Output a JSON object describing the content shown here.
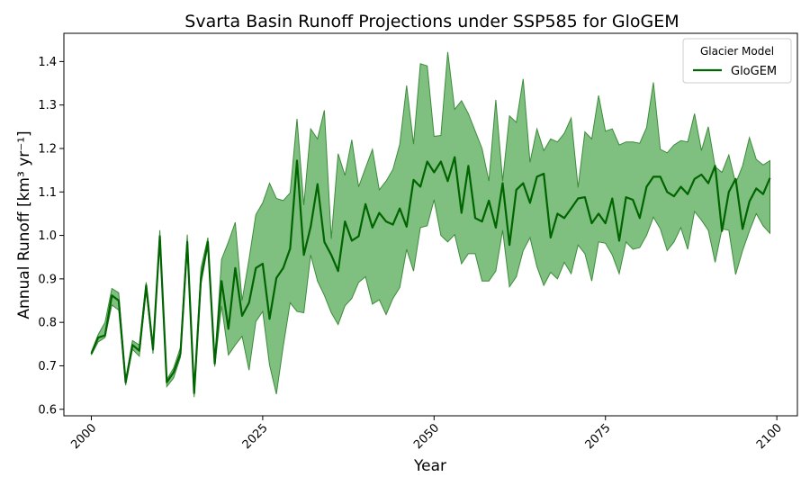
{
  "chart_data": {
    "type": "line",
    "title": "Svarta Basin Runoff Projections under SSP585 for GloGEM",
    "xlabel": "Year",
    "ylabel": "Annual Runoff [km³ yr⁻¹]",
    "xlim": [
      1996,
      2103
    ],
    "ylim": [
      0.585,
      1.465
    ],
    "xticks": [
      2000,
      2025,
      2050,
      2075,
      2100
    ],
    "yticks": [
      0.6,
      0.7,
      0.8,
      0.9,
      1.0,
      1.1,
      1.2,
      1.3,
      1.4
    ],
    "xtick_labels": [
      "2000",
      "2025",
      "2050",
      "2075",
      "2100"
    ],
    "ytick_labels": [
      "0.6",
      "0.7",
      "0.8",
      "0.9",
      "1.0",
      "1.1",
      "1.2",
      "1.3",
      "1.4"
    ],
    "grid": false,
    "legend": {
      "title": "Glacier Model",
      "position": "top-right"
    },
    "x": [
      2000,
      2001,
      2002,
      2003,
      2004,
      2005,
      2006,
      2007,
      2008,
      2009,
      2010,
      2011,
      2012,
      2013,
      2014,
      2015,
      2016,
      2017,
      2018,
      2019,
      2020,
      2021,
      2022,
      2023,
      2024,
      2025,
      2026,
      2027,
      2028,
      2029,
      2030,
      2031,
      2032,
      2033,
      2034,
      2035,
      2036,
      2037,
      2038,
      2039,
      2040,
      2041,
      2042,
      2043,
      2044,
      2045,
      2046,
      2047,
      2048,
      2049,
      2050,
      2051,
      2052,
      2053,
      2054,
      2055,
      2056,
      2057,
      2058,
      2059,
      2060,
      2061,
      2062,
      2063,
      2064,
      2065,
      2066,
      2067,
      2068,
      2069,
      2070,
      2071,
      2072,
      2073,
      2074,
      2075,
      2076,
      2077,
      2078,
      2079,
      2080,
      2081,
      2082,
      2083,
      2084,
      2085,
      2086,
      2087,
      2088,
      2089,
      2090,
      2091,
      2092,
      2093,
      2094,
      2095,
      2096,
      2097,
      2098,
      2099
    ],
    "series": [
      {
        "name": "GloGEM",
        "color": "#006400",
        "fill_color": "#7fbf7f",
        "values": [
          0.728,
          0.765,
          0.77,
          0.862,
          0.85,
          0.662,
          0.748,
          0.735,
          0.885,
          0.738,
          0.998,
          0.662,
          0.685,
          0.728,
          0.985,
          0.637,
          0.902,
          0.985,
          0.705,
          0.895,
          0.785,
          0.925,
          0.815,
          0.845,
          0.925,
          0.935,
          0.808,
          0.902,
          0.925,
          0.97,
          1.172,
          0.955,
          1.02,
          1.118,
          0.985,
          0.955,
          0.918,
          1.032,
          0.988,
          0.998,
          1.072,
          1.018,
          1.052,
          1.032,
          1.025,
          1.062,
          1.02,
          1.128,
          1.112,
          1.17,
          1.145,
          1.17,
          1.125,
          1.18,
          1.052,
          1.16,
          1.04,
          1.032,
          1.08,
          1.018,
          1.12,
          0.978,
          1.105,
          1.12,
          1.075,
          1.135,
          1.142,
          0.995,
          1.05,
          1.04,
          1.062,
          1.085,
          1.088,
          1.028,
          1.05,
          1.028,
          1.085,
          0.988,
          1.088,
          1.082,
          1.04,
          1.112,
          1.135,
          1.135,
          1.1,
          1.09,
          1.112,
          1.095,
          1.13,
          1.14,
          1.12,
          1.16,
          1.01,
          1.1,
          1.13,
          1.015,
          1.078,
          1.108,
          1.095,
          1.132
        ]
      }
    ],
    "band": {
      "upper": [
        0.732,
        0.772,
        0.8,
        0.878,
        0.868,
        0.668,
        0.758,
        0.748,
        0.892,
        0.745,
        1.012,
        0.668,
        0.695,
        0.742,
        1.002,
        0.642,
        0.925,
        0.995,
        0.712,
        0.945,
        0.985,
        1.03,
        0.85,
        0.945,
        1.048,
        1.075,
        1.12,
        1.085,
        1.08,
        1.098,
        1.268,
        1.07,
        1.245,
        1.222,
        1.288,
        0.992,
        1.188,
        1.138,
        1.22,
        1.112,
        1.155,
        1.198,
        1.105,
        1.125,
        1.152,
        1.21,
        1.345,
        1.21,
        1.395,
        1.39,
        1.228,
        1.23,
        1.422,
        1.29,
        1.31,
        1.28,
        1.24,
        1.2,
        1.125,
        1.312,
        1.125,
        1.275,
        1.26,
        1.36,
        1.168,
        1.245,
        1.195,
        1.222,
        1.215,
        1.235,
        1.27,
        1.11,
        1.238,
        1.222,
        1.322,
        1.24,
        1.245,
        1.208,
        1.215,
        1.215,
        1.212,
        1.248,
        1.352,
        1.198,
        1.19,
        1.208,
        1.218,
        1.215,
        1.28,
        1.195,
        1.25,
        1.158,
        1.145,
        1.185,
        1.12,
        1.16,
        1.225,
        1.175,
        1.162,
        1.172
      ],
      "lower": [
        0.725,
        0.755,
        0.765,
        0.84,
        0.828,
        0.655,
        0.738,
        0.722,
        0.872,
        0.728,
        0.988,
        0.652,
        0.672,
        0.72,
        0.968,
        0.628,
        0.888,
        0.975,
        0.698,
        0.838,
        0.725,
        0.748,
        0.768,
        0.69,
        0.802,
        0.825,
        0.702,
        0.635,
        0.745,
        0.845,
        0.825,
        0.822,
        0.955,
        0.895,
        0.862,
        0.822,
        0.795,
        0.838,
        0.855,
        0.892,
        0.905,
        0.842,
        0.852,
        0.818,
        0.855,
        0.88,
        0.968,
        0.918,
        1.018,
        1.022,
        1.082,
        1.0,
        0.985,
        1.002,
        0.935,
        0.958,
        0.958,
        0.895,
        0.895,
        0.918,
        1.012,
        0.882,
        0.905,
        0.965,
        0.995,
        0.928,
        0.885,
        0.915,
        0.9,
        0.938,
        0.912,
        0.978,
        0.958,
        0.895,
        0.985,
        0.982,
        0.955,
        0.912,
        0.985,
        0.968,
        0.972,
        1.0,
        1.042,
        1.015,
        0.965,
        0.985,
        1.018,
        0.968,
        1.055,
        1.035,
        1.012,
        0.938,
        1.015,
        1.012,
        0.91,
        0.965,
        1.01,
        1.05,
        1.022,
        1.005
      ]
    }
  }
}
